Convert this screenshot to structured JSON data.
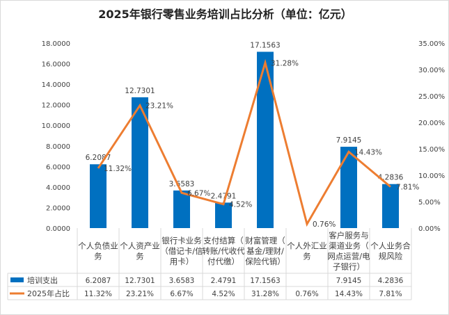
{
  "chart_data": {
    "type": "bar+line",
    "title": "2025年银行零售业务培训占比分析（单位：亿元）",
    "categories": [
      "个人负债业务",
      "个人资产业务",
      "银行卡业务（借记卡/信用卡）",
      "支付结算（转账/代收代付代缴）",
      "财富管理（基金/理财/保险代销）",
      "个人外汇业务",
      "客户服务与渠道业务（网点运营/电子银行）",
      "个人业务合规风险"
    ],
    "category_display": [
      [
        "个人负债业",
        "务"
      ],
      [
        "个人资产业",
        "务"
      ],
      [
        "银行卡业务",
        "（借记卡/信",
        "用卡）"
      ],
      [
        "支付结算（",
        "转账/代收代",
        "付代缴）"
      ],
      [
        "财富管理（",
        "基金/理财/",
        "保险代销）"
      ],
      [
        "个人外汇业",
        "务"
      ],
      [
        "客户服务与",
        "渠道业务（",
        "网点运营/电",
        "子银行）"
      ],
      [
        "个人业务合",
        "规风险"
      ]
    ],
    "series": [
      {
        "name": "培训支出",
        "type": "bar",
        "axis": "left",
        "color": "#0070C0",
        "values": [
          6.2087,
          12.7301,
          3.6583,
          2.4791,
          17.1563,
          null,
          7.9145,
          4.2836
        ],
        "labels": [
          "6.2087",
          "12.7301",
          "3.6583",
          "2.4791",
          "17.1563",
          "",
          "7.9145",
          "4.2836"
        ]
      },
      {
        "name": "2025年占比",
        "type": "line",
        "axis": "right",
        "color": "#ED7D31",
        "values": [
          11.32,
          23.21,
          6.67,
          4.52,
          31.28,
          0.76,
          14.43,
          7.81
        ],
        "labels": [
          "11.32%",
          "23.21%",
          "6.67%",
          "4.52%",
          "31.28%",
          "0.76%",
          "14.43%",
          "7.81%"
        ]
      }
    ],
    "left_axis": {
      "range": [
        0,
        18
      ],
      "ticks": [
        "0.0000",
        "2.0000",
        "4.0000",
        "6.0000",
        "8.0000",
        "10.0000",
        "12.0000",
        "14.0000",
        "16.0000",
        "18.0000"
      ]
    },
    "right_axis": {
      "range": [
        0,
        35
      ],
      "ticks": [
        "0.00%",
        "5.00%",
        "10.00%",
        "15.00%",
        "20.00%",
        "25.00%",
        "30.00%",
        "35.00%"
      ]
    },
    "grid": false,
    "legend": "data-table"
  }
}
